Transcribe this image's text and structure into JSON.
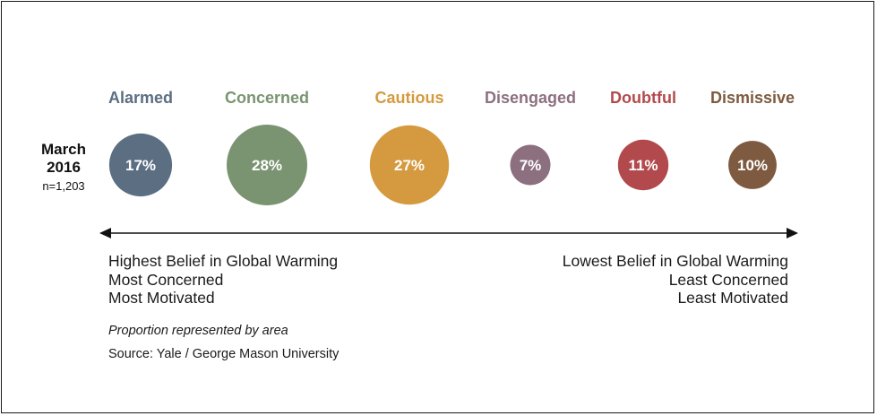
{
  "chart_data": {
    "type": "bubble",
    "categories": [
      "Alarmed",
      "Concerned",
      "Cautious",
      "Disengaged",
      "Doubtful",
      "Dismissive"
    ],
    "values": [
      17,
      28,
      27,
      7,
      11,
      10
    ],
    "value_labels": [
      "17%",
      "28%",
      "27%",
      "7%",
      "11%",
      "10%"
    ],
    "colors": [
      "#5b6e82",
      "#7a9471",
      "#d59a3f",
      "#8d7080",
      "#b24a4d",
      "#7d5a40"
    ],
    "period": {
      "line1": "March",
      "line2": "2016",
      "n": "n=1,203"
    },
    "encoding_note": "Proportion represented by area"
  },
  "left_end": [
    "Highest Belief in Global Warming",
    "Most Concerned",
    "Most Motivated"
  ],
  "right_end": [
    "Lowest Belief in Global Warming",
    "Least Concerned",
    "Least Motivated"
  ],
  "note": "Proportion represented by area",
  "source": "Source: Yale / George Mason University"
}
